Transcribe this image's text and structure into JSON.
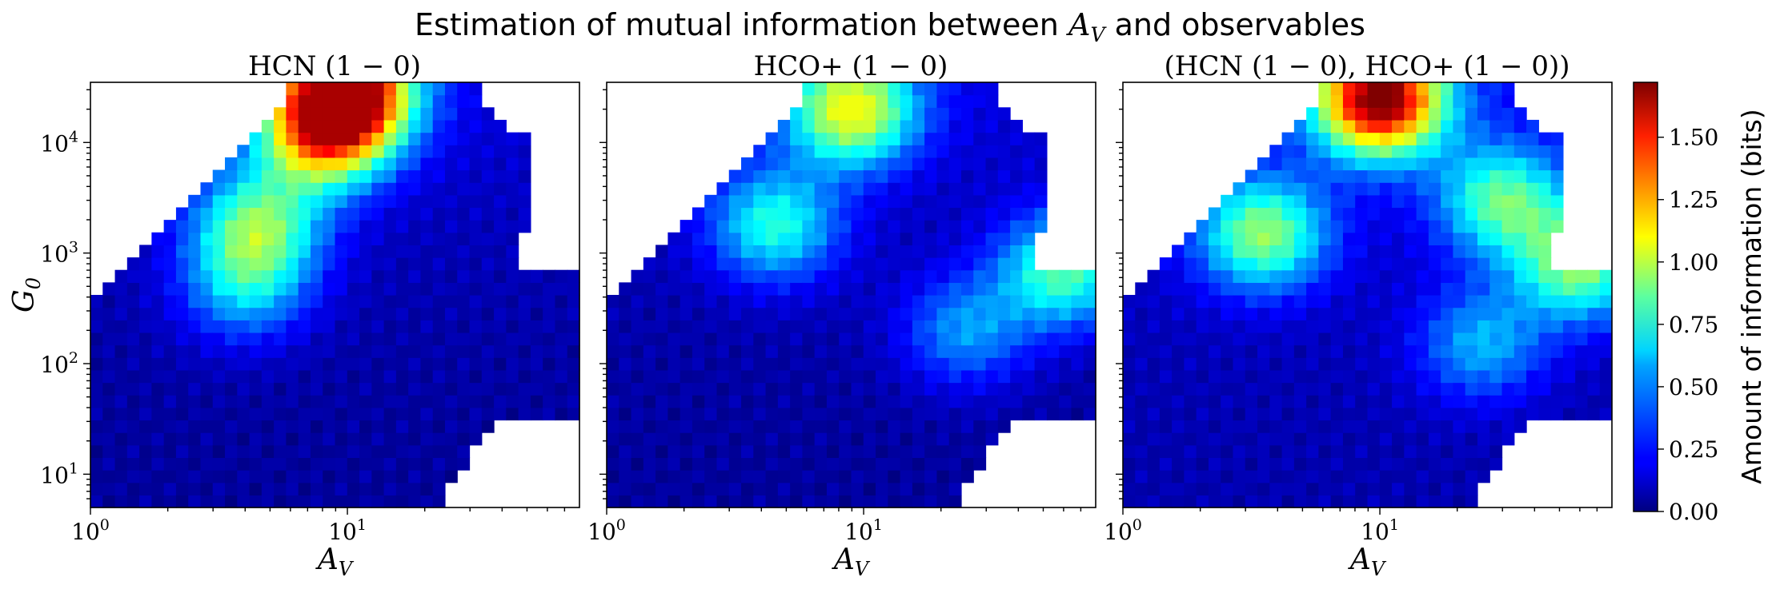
{
  "title_prefix": "Estimation of mutual information between",
  "title_var": "A",
  "title_var_sub": "V",
  "title_suffix": "and observables",
  "colorbar": {
    "label": "Amount of information (bits)",
    "ticks": [
      "0.00",
      "0.25",
      "0.50",
      "0.75",
      "1.00",
      "1.25",
      "1.50"
    ],
    "range": [
      0,
      1.72
    ]
  },
  "y_axis_label": "G",
  "y_axis_label_sub": "0",
  "chart_data": [
    {
      "type": "heatmap",
      "title": "HCN (1 − 0)",
      "xlabel": "A_V",
      "ylabel": "G_0",
      "xscale": "log",
      "yscale": "log",
      "xlim": [
        1,
        80
      ],
      "ylim": [
        5,
        35000
      ],
      "x_ticks": [
        "10^0",
        "10^1"
      ],
      "y_ticks": [
        "10^1",
        "10^2",
        "10^3",
        "10^4"
      ],
      "hotspots": [
        {
          "A_V": 10,
          "G0": 30000,
          "bits": 1.6
        },
        {
          "A_V": 8,
          "G0": 12000,
          "bits": 1.05
        },
        {
          "A_V": 4.5,
          "G0": 1800,
          "bits": 0.75
        },
        {
          "A_V": 4,
          "G0": 500,
          "bits": 0.5
        }
      ],
      "background_bits": 0.05,
      "max_bits": 1.65
    },
    {
      "type": "heatmap",
      "title": "HCO+ (1 − 0)",
      "xlabel": "A_V",
      "xscale": "log",
      "yscale": "log",
      "xlim": [
        1,
        80
      ],
      "ylim": [
        5,
        35000
      ],
      "x_ticks": [
        "10^0",
        "10^1"
      ],
      "hotspots": [
        {
          "A_V": 9,
          "G0": 20000,
          "bits": 1.0
        },
        {
          "A_V": 4.5,
          "G0": 1800,
          "bits": 0.65
        },
        {
          "A_V": 25,
          "G0": 200,
          "bits": 0.45
        },
        {
          "A_V": 60,
          "G0": 700,
          "bits": 0.75
        }
      ],
      "background_bits": 0.05,
      "max_bits": 1.05
    },
    {
      "type": "heatmap",
      "title": "(HCN (1 − 0), HCO+ (1 − 0))",
      "xlabel": "A_V",
      "xscale": "log",
      "yscale": "log",
      "xlim": [
        1,
        80
      ],
      "ylim": [
        5,
        35000
      ],
      "x_ticks": [
        "10^0",
        "10^1"
      ],
      "hotspots": [
        {
          "A_V": 10,
          "G0": 25000,
          "bits": 1.7
        },
        {
          "A_V": 3.5,
          "G0": 1500,
          "bits": 0.85
        },
        {
          "A_V": 30,
          "G0": 3000,
          "bits": 0.75
        },
        {
          "A_V": 60,
          "G0": 800,
          "bits": 0.85
        },
        {
          "A_V": 25,
          "G0": 150,
          "bits": 0.5
        }
      ],
      "background_bits": 0.08,
      "max_bits": 1.72
    }
  ]
}
